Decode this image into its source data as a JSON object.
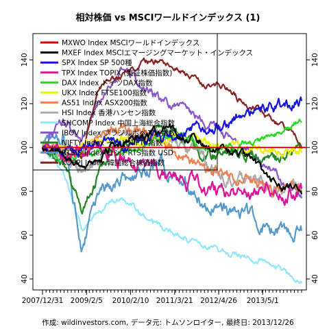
{
  "chart_data": {
    "type": "line",
    "title": "相対株価 vs MSCIワールドインデックス (1)",
    "caption": "作成: wildinvestors.com, データ元: トムソンロイター, 最終日: 2013/12/26",
    "xlabel": "",
    "ylabel": "",
    "x_tick_labels": [
      "2007/12/31",
      "2009/2/5",
      "2010/2/10",
      "2011/3/21",
      "2012/4/26",
      "2013/5/1"
    ],
    "x_tick_positions": [
      0.0,
      0.17,
      0.34,
      0.51,
      0.68,
      0.85
    ],
    "y_ticks": [
      40,
      60,
      80,
      100,
      120,
      140
    ],
    "ylim": [
      35,
      152
    ],
    "grid": false,
    "legend_position": "top-left",
    "reference_line": {
      "value": 100,
      "color": "#dd0000"
    },
    "series": [
      {
        "name": "MXWO Index MSCIワールドインデックス",
        "color": "#dd0000",
        "x": [
          0.0,
          1.0
        ],
        "values": [
          100,
          100
        ]
      },
      {
        "name": "MXEF Index MSCIエマージングマーケット・インデックス",
        "color": "#000000",
        "x": [
          0.0,
          0.08,
          0.15,
          0.22,
          0.3,
          0.38,
          0.46,
          0.54,
          0.62,
          0.7,
          0.78,
          0.86,
          0.93,
          1.0
        ],
        "values": [
          100,
          98,
          92,
          95,
          103,
          106,
          107,
          106,
          102,
          99,
          96,
          88,
          82,
          79
        ]
      },
      {
        "name": "SPX Index SP 500種",
        "color": "#1515dd",
        "x": [
          0.0,
          0.08,
          0.15,
          0.22,
          0.3,
          0.38,
          0.46,
          0.54,
          0.62,
          0.7,
          0.78,
          0.86,
          0.93,
          1.0
        ],
        "values": [
          100,
          98,
          100,
          103,
          103,
          103,
          104,
          105,
          108,
          112,
          115,
          117,
          119,
          121
        ]
      },
      {
        "name": "TPX Index TOPIX (東証株価指数)",
        "color": "#e0109a",
        "x": [
          0.0,
          0.08,
          0.15,
          0.22,
          0.3,
          0.38,
          0.46,
          0.54,
          0.62,
          0.7,
          0.78,
          0.86,
          0.93,
          1.0
        ],
        "values": [
          100,
          97,
          98,
          100,
          95,
          90,
          88,
          85,
          82,
          80,
          78,
          84,
          80,
          80
        ]
      },
      {
        "name": "DAX Index ドイツDAX指数",
        "color": "#22dd22",
        "x": [
          0.0,
          0.08,
          0.15,
          0.22,
          0.3,
          0.38,
          0.46,
          0.54,
          0.62,
          0.7,
          0.78,
          0.86,
          0.93,
          1.0
        ],
        "values": [
          100,
          95,
          97,
          98,
          99,
          100,
          105,
          107,
          100,
          100,
          102,
          104,
          107,
          113
        ]
      },
      {
        "name": "UKX Index FTSE100指数",
        "color": "#eeee00",
        "x": [
          0.0,
          0.08,
          0.15,
          0.22,
          0.3,
          0.38,
          0.46,
          0.54,
          0.62,
          0.7,
          0.78,
          0.86,
          0.93,
          1.0
        ],
        "values": [
          100,
          99,
          101,
          101,
          104,
          104,
          104,
          104,
          103,
          101,
          100,
          99,
          98,
          99
        ]
      },
      {
        "name": "AS51 Index ASX200指数",
        "color": "#f08050",
        "x": [
          0.0,
          0.08,
          0.15,
          0.22,
          0.3,
          0.38,
          0.46,
          0.54,
          0.62,
          0.7,
          0.78,
          0.86,
          0.93,
          1.0
        ],
        "values": [
          100,
          100,
          97,
          104,
          111,
          107,
          101,
          96,
          91,
          87,
          85,
          82,
          82,
          82
        ]
      },
      {
        "name": "HSI Index 香港ハンセン指数",
        "color": "#aaaaaa",
        "x": [
          0.0,
          0.08,
          0.15,
          0.22,
          0.3,
          0.38,
          0.46,
          0.54,
          0.62,
          0.7,
          0.78,
          0.86,
          0.93,
          1.0
        ],
        "values": [
          100,
          96,
          88,
          96,
          103,
          104,
          103,
          100,
          93,
          88,
          87,
          84,
          81,
          82
        ]
      },
      {
        "name": "SHCOMP Index 中国上海総合指数",
        "color": "#90e8f8",
        "x": [
          0.0,
          0.08,
          0.15,
          0.22,
          0.3,
          0.38,
          0.46,
          0.54,
          0.62,
          0.7,
          0.78,
          0.86,
          0.93,
          1.0
        ],
        "values": [
          100,
          90,
          62,
          72,
          77,
          70,
          64,
          60,
          56,
          53,
          50,
          47,
          43,
          39
        ]
      },
      {
        "name": "IBOV Index ブラジルボベスパ指数",
        "color": "#8855cc",
        "x": [
          0.0,
          0.08,
          0.15,
          0.22,
          0.3,
          0.38,
          0.46,
          0.54,
          0.62,
          0.7,
          0.78,
          0.86,
          0.93,
          1.0
        ],
        "values": [
          100,
          112,
          103,
          122,
          135,
          128,
          122,
          118,
          112,
          107,
          100,
          92,
          85,
          78
        ]
      },
      {
        "name": "NIFTY Index インドNIFTY指数",
        "color": "#228822",
        "x": [
          0.0,
          0.08,
          0.15,
          0.22,
          0.3,
          0.38,
          0.46,
          0.54,
          0.62,
          0.7,
          0.78,
          0.86,
          0.93,
          1.0
        ],
        "values": [
          100,
          92,
          70,
          88,
          101,
          104,
          110,
          105,
          98,
          96,
          98,
          94,
          95,
          100
        ]
      },
      {
        "name": "RTSIS Index ロシアRTS指数 USD",
        "color": "#5599cc",
        "x": [
          0.0,
          0.08,
          0.15,
          0.22,
          0.3,
          0.38,
          0.46,
          0.54,
          0.62,
          0.7,
          0.78,
          0.86,
          0.93,
          1.0
        ],
        "values": [
          100,
          105,
          55,
          78,
          85,
          87,
          92,
          85,
          75,
          72,
          70,
          65,
          62,
          61
        ]
      },
      {
        "name": "KOSPI Index 韓国総合株価指数",
        "color": "#882222",
        "x": [
          0.0,
          0.08,
          0.15,
          0.22,
          0.3,
          0.38,
          0.46,
          0.54,
          0.62,
          0.7,
          0.78,
          0.86,
          0.93,
          1.0
        ],
        "values": [
          100,
          98,
          95,
          128,
          132,
          138,
          140,
          135,
          130,
          128,
          120,
          115,
          110,
          103
        ]
      }
    ]
  }
}
